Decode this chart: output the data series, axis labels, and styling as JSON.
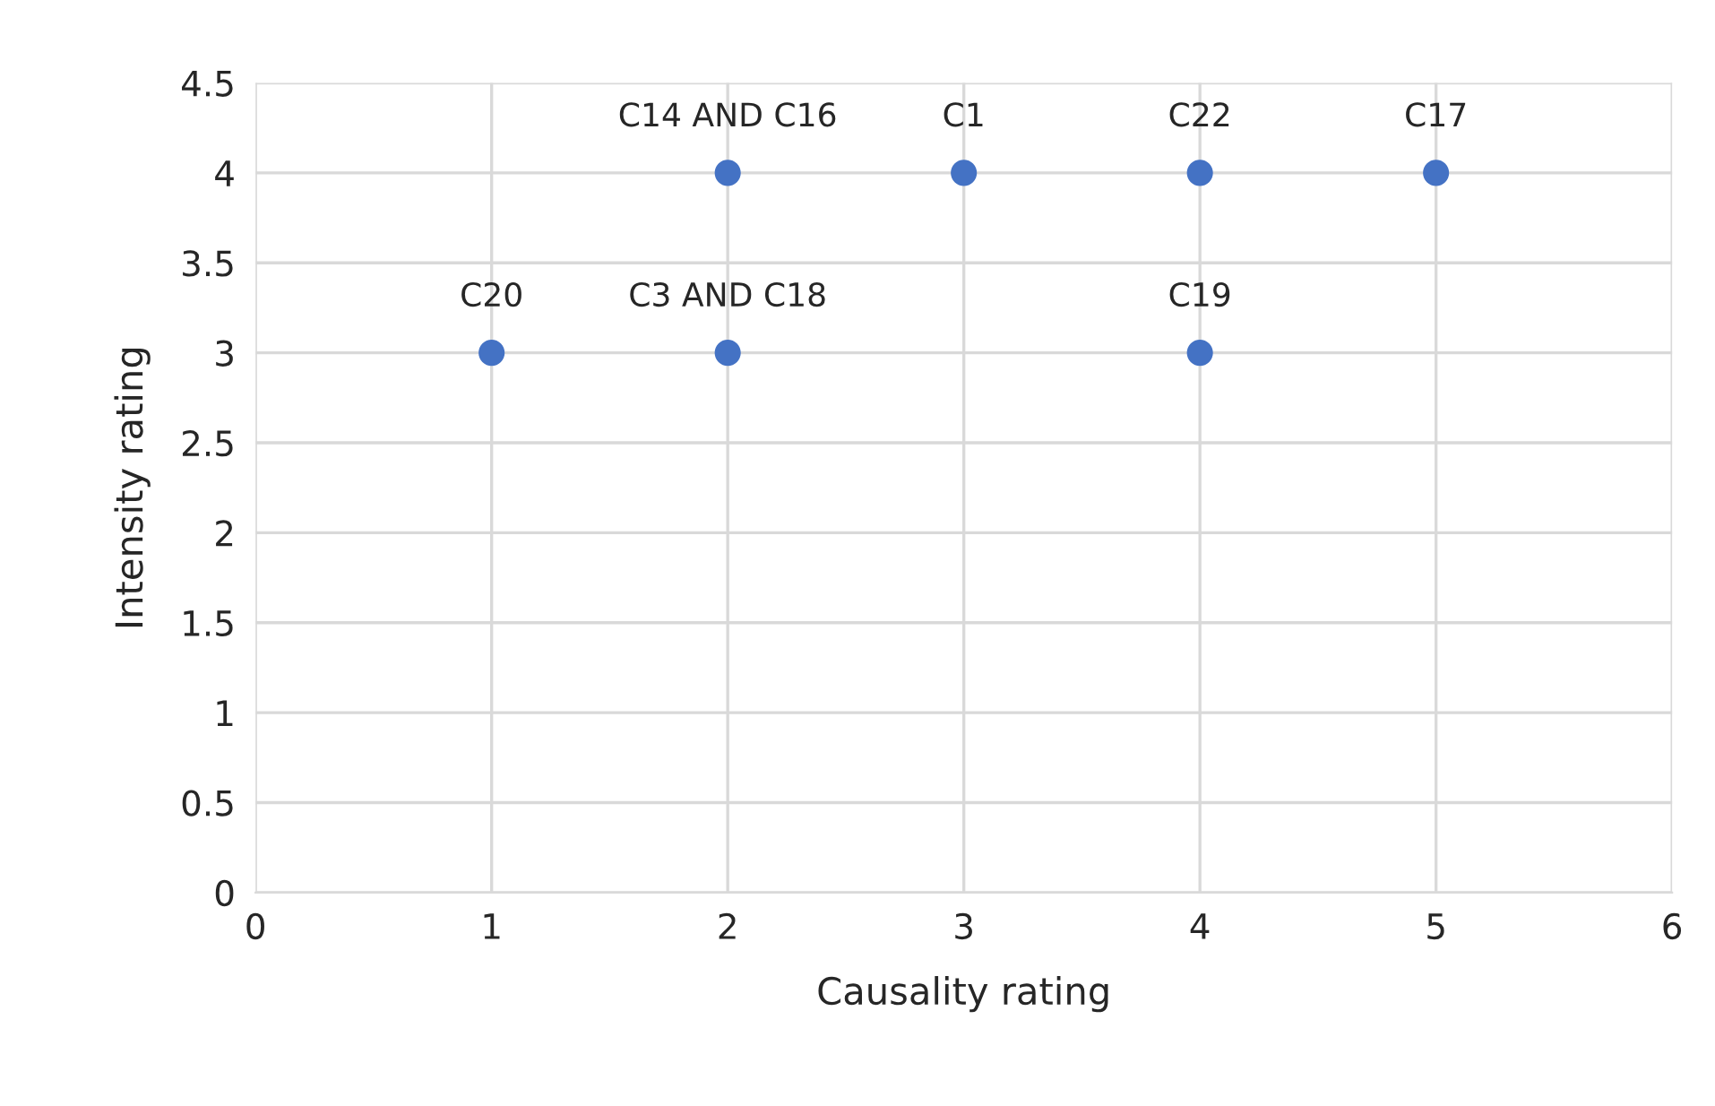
{
  "chart_data": {
    "type": "scatter",
    "xlabel": "Causality rating",
    "ylabel": "Intensity rating",
    "x": [
      1,
      2,
      2,
      3,
      4,
      4,
      5
    ],
    "series": [
      {
        "color": "#4472c4",
        "values": [
          3,
          4,
          3,
          4,
          4,
          3,
          4
        ]
      }
    ],
    "annotations": [
      {
        "text": "C20",
        "x": 1,
        "y": 3
      },
      {
        "text": "C14 AND C16",
        "x": 2,
        "y": 4
      },
      {
        "text": "C3 AND C18",
        "x": 2,
        "y": 3
      },
      {
        "text": "C1",
        "x": 3,
        "y": 4
      },
      {
        "text": "C22",
        "x": 4,
        "y": 4
      },
      {
        "text": "C19",
        "x": 4,
        "y": 3
      },
      {
        "text": "C17",
        "x": 5,
        "y": 4
      }
    ],
    "xlim": [
      0,
      6
    ],
    "xticks": [
      0,
      1,
      2,
      3,
      4,
      5,
      6
    ],
    "ylim": [
      0,
      4.5
    ],
    "yticks": [
      0,
      0.5,
      1,
      1.5,
      2,
      2.5,
      3,
      3.5,
      4,
      4.5
    ],
    "grid": true,
    "marker": "circle"
  }
}
